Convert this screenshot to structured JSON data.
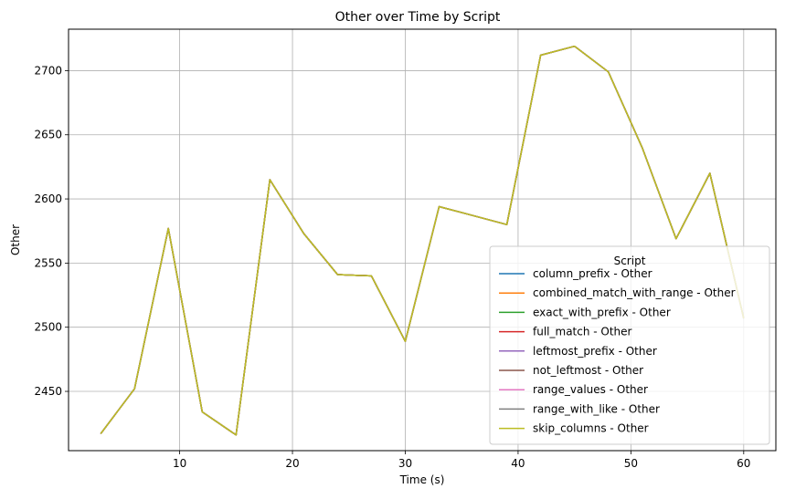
{
  "chart_data": {
    "type": "line",
    "title": "Other over Time by Script",
    "xlabel": "Time (s)",
    "ylabel": "Other",
    "xlim": [
      0.15,
      62.85
    ],
    "ylim": [
      2403.8,
      2732.3
    ],
    "xticks": [
      10,
      20,
      30,
      40,
      50,
      60
    ],
    "yticks": [
      2450,
      2500,
      2550,
      2600,
      2650,
      2700
    ],
    "grid": true,
    "legend": {
      "title": "Script",
      "placement": "lower-right"
    },
    "x": [
      3,
      6,
      9,
      12,
      15,
      18,
      21,
      24,
      27,
      30,
      33,
      36,
      39,
      42,
      45,
      48,
      51,
      54,
      57,
      60
    ],
    "series": [
      {
        "name": "column_prefix - Other",
        "color": "#1f77b4",
        "values": [
          2417,
          2452,
          2577,
          2434,
          2416,
          2615,
          2573,
          2541,
          2540,
          2489,
          2594,
          2587,
          2580,
          2712,
          2719,
          2699,
          2640,
          2569,
          2620,
          2507
        ]
      },
      {
        "name": "combined_match_with_range - Other",
        "color": "#ff7f0e",
        "values": [
          2417,
          2452,
          2577,
          2434,
          2416,
          2615,
          2573,
          2541,
          2540,
          2489,
          2594,
          2587,
          2580,
          2712,
          2719,
          2699,
          2640,
          2569,
          2620,
          2507
        ]
      },
      {
        "name": "exact_with_prefix - Other",
        "color": "#2ca02c",
        "values": [
          2417,
          2452,
          2577,
          2434,
          2416,
          2615,
          2573,
          2541,
          2540,
          2489,
          2594,
          2587,
          2580,
          2712,
          2719,
          2699,
          2640,
          2569,
          2620,
          2507
        ]
      },
      {
        "name": "full_match - Other",
        "color": "#d62728",
        "values": [
          2417,
          2452,
          2577,
          2434,
          2416,
          2615,
          2573,
          2541,
          2540,
          2489,
          2594,
          2587,
          2580,
          2712,
          2719,
          2699,
          2640,
          2569,
          2620,
          2507
        ]
      },
      {
        "name": "leftmost_prefix - Other",
        "color": "#9467bd",
        "values": [
          2417,
          2452,
          2577,
          2434,
          2416,
          2615,
          2573,
          2541,
          2540,
          2489,
          2594,
          2587,
          2580,
          2712,
          2719,
          2699,
          2640,
          2569,
          2620,
          2507
        ]
      },
      {
        "name": "not_leftmost - Other",
        "color": "#8c564b",
        "values": [
          2417,
          2452,
          2577,
          2434,
          2416,
          2615,
          2573,
          2541,
          2540,
          2489,
          2594,
          2587,
          2580,
          2712,
          2719,
          2699,
          2640,
          2569,
          2620,
          2507
        ]
      },
      {
        "name": "range_values - Other",
        "color": "#e377c2",
        "values": [
          2417,
          2452,
          2577,
          2434,
          2416,
          2615,
          2573,
          2541,
          2540,
          2489,
          2594,
          2587,
          2580,
          2712,
          2719,
          2699,
          2640,
          2569,
          2620,
          2507
        ]
      },
      {
        "name": "range_with_like - Other",
        "color": "#7f7f7f",
        "values": [
          2417,
          2452,
          2577,
          2434,
          2416,
          2615,
          2573,
          2541,
          2540,
          2489,
          2594,
          2587,
          2580,
          2712,
          2719,
          2699,
          2640,
          2569,
          2620,
          2507
        ]
      },
      {
        "name": "skip_columns - Other",
        "color": "#bcbd22",
        "values": [
          2417,
          2452,
          2577,
          2434,
          2416,
          2615,
          2573,
          2541,
          2540,
          2489,
          2594,
          2587,
          2580,
          2712,
          2719,
          2699,
          2640,
          2569,
          2620,
          2507
        ]
      }
    ]
  }
}
